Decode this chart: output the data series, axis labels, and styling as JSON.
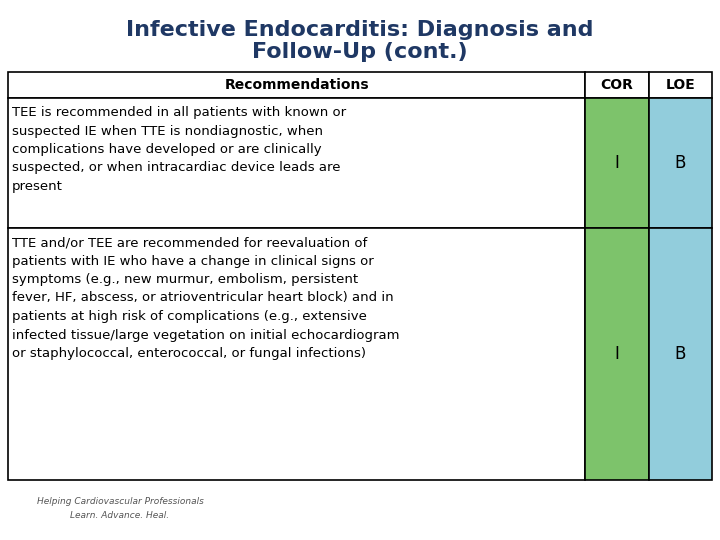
{
  "title_line1": "Infective Endocarditis: Diagnosis and",
  "title_line2": "Follow-Up (cont.)",
  "title_color": "#1F3864",
  "title_fontsize": 16,
  "background_color": "#FFFFFF",
  "header_text": "Recommendations",
  "header_fontsize": 10,
  "col_cor": "COR",
  "col_loe": "LOE",
  "col_header_fontsize": 10,
  "table_border_color": "#000000",
  "cor_col_color": "#7DC36B",
  "loe_col_color": "#92CDDC",
  "row1_lines": [
    "TEE is recommended in all patients with known or",
    "suspected IE when TTE is nondiagnostic, when",
    "complications have developed or are clinically",
    "suspected, or when intracardiac device leads are",
    "present"
  ],
  "row2_lines": [
    "TTE and/or TEE are recommended for reevaluation of",
    "patients with IE who have a change in clinical signs or",
    "symptoms (e.g., new murmur, embolism, persistent",
    "fever, HF, abscess, or atrioventricular heart block) and in",
    "patients at high risk of complications (e.g., extensive",
    "infected tissue/large vegetation on initial echocardiogram",
    "or staphylococcal, enterococcal, or fungal infections)"
  ],
  "row1_cor": "I",
  "row1_loe": "B",
  "row2_cor": "I",
  "row2_loe": "B",
  "cell_fontsize": 9.5,
  "footer_left_text1": "Helping Cardiovascular Professionals",
  "footer_left_text2": "Learn. Advance. Heal."
}
